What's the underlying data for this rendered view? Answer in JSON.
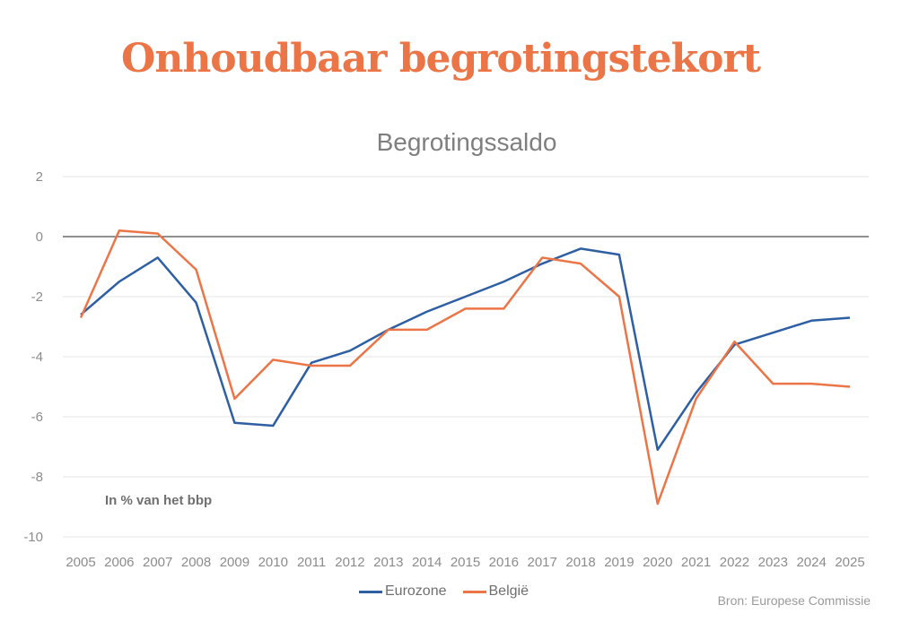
{
  "headline": "Onhoudbaar begrotingstekort",
  "source": "Bron: Europese Commissie",
  "chart_data": {
    "type": "line",
    "title": "Begrotingssaldo",
    "annotation": "In % van het bbp",
    "x": [
      2005,
      2006,
      2007,
      2008,
      2009,
      2010,
      2011,
      2012,
      2013,
      2014,
      2015,
      2016,
      2017,
      2018,
      2019,
      2020,
      2021,
      2022,
      2023,
      2024,
      2025
    ],
    "yticks": [
      2,
      0,
      -2,
      -4,
      -6,
      -8,
      -10
    ],
    "ylim": [
      -10,
      2
    ],
    "grid": true,
    "legend_position": "bottom",
    "series": [
      {
        "name": "Eurozone",
        "color": "#2e5fa3",
        "values": [
          -2.6,
          -1.5,
          -0.7,
          -2.2,
          -6.2,
          -6.3,
          -4.2,
          -3.8,
          -3.1,
          -2.5,
          -2.0,
          -1.5,
          -0.9,
          -0.4,
          -0.6,
          -7.1,
          -5.2,
          -3.6,
          -3.2,
          -2.8,
          -2.7
        ]
      },
      {
        "name": "België",
        "color": "#ec7547",
        "values": [
          -2.7,
          0.2,
          0.1,
          -1.1,
          -5.4,
          -4.1,
          -4.3,
          -4.3,
          -3.1,
          -3.1,
          -2.4,
          -2.4,
          -0.7,
          -0.9,
          -2.0,
          -8.9,
          -5.4,
          -3.5,
          -4.9,
          -4.9,
          -5.0
        ]
      }
    ]
  }
}
